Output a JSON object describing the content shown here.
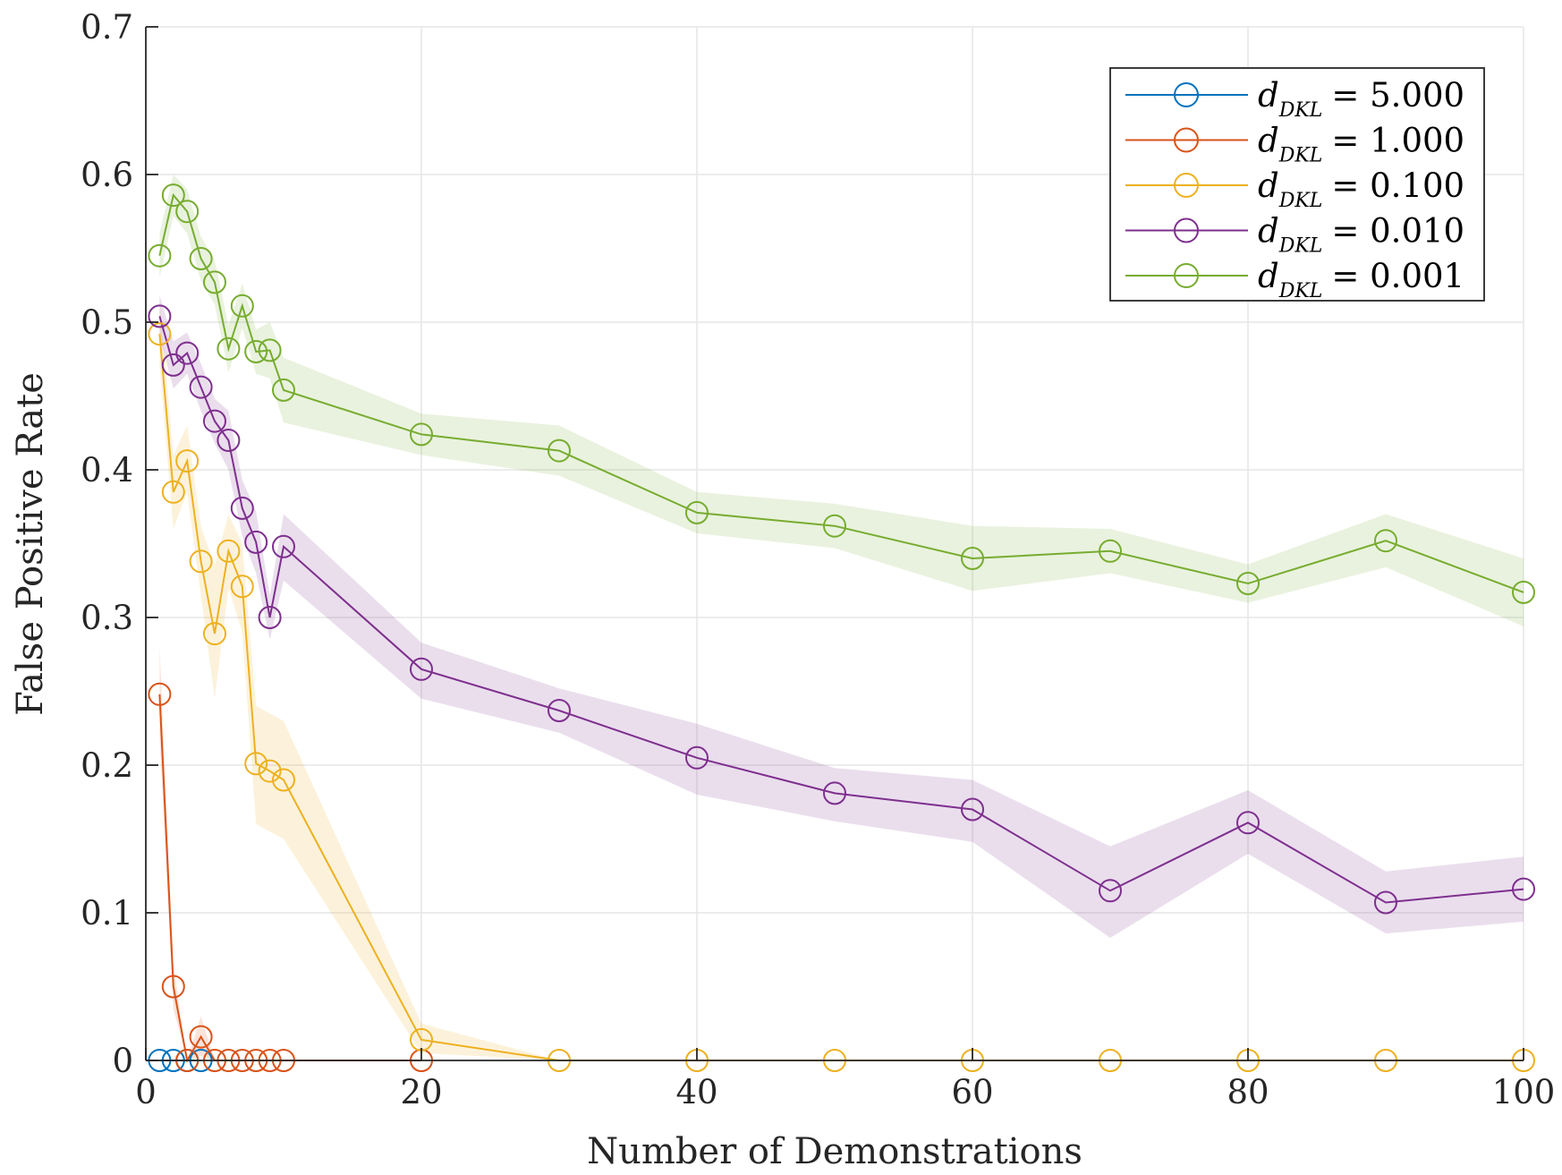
{
  "chart_data": {
    "type": "line",
    "title": "",
    "xlabel": "Number of Demonstrations",
    "ylabel": "False Positive Rate",
    "xlim": [
      0,
      100
    ],
    "ylim": [
      0,
      0.7
    ],
    "xticks": [
      0,
      20,
      40,
      60,
      80,
      100
    ],
    "yticks": [
      0,
      0.1,
      0.2,
      0.3,
      0.4,
      0.5,
      0.6,
      0.7
    ],
    "xtick_labels": [
      "0",
      "20",
      "40",
      "60",
      "80",
      "100"
    ],
    "ytick_labels": [
      "0",
      "0.1",
      "0.2",
      "0.3",
      "0.4",
      "0.5",
      "0.6",
      "0.7"
    ],
    "grid": true,
    "legend_position": "top-right",
    "series": [
      {
        "name": "d_{D_{KL}} = 5.000",
        "legend_var": "d",
        "legend_sub": "DKL",
        "legend_value": "= 5.000",
        "color": "#0072BD",
        "x": [
          1,
          2,
          3,
          4
        ],
        "values": [
          0,
          0,
          0,
          0
        ],
        "lower": [
          0,
          0,
          0,
          0
        ],
        "upper": [
          0,
          0,
          0,
          0
        ]
      },
      {
        "name": "d_{D_{KL}} = 1.000",
        "legend_var": "d",
        "legend_sub": "DKL",
        "legend_value": "= 1.000",
        "color": "#D95319",
        "x": [
          1,
          2,
          3,
          4,
          5,
          6,
          7,
          8,
          9,
          10,
          20
        ],
        "values": [
          0.248,
          0.05,
          0,
          0.016,
          0,
          0,
          0,
          0,
          0,
          0,
          0
        ],
        "lower": [
          0.22,
          0.035,
          0,
          0.003,
          0,
          0,
          0,
          0,
          0,
          0,
          0
        ],
        "upper": [
          0.28,
          0.065,
          0,
          0.03,
          0,
          0,
          0,
          0,
          0,
          0,
          0
        ]
      },
      {
        "name": "d_{D_{KL}} = 0.100",
        "legend_var": "d",
        "legend_sub": "DKL",
        "legend_value": "= 0.100",
        "color": "#EDB120",
        "x": [
          1,
          2,
          3,
          4,
          5,
          6,
          7,
          8,
          9,
          10,
          20,
          30,
          40,
          50,
          60,
          70,
          80,
          90,
          100
        ],
        "values": [
          0.492,
          0.385,
          0.406,
          0.338,
          0.289,
          0.345,
          0.321,
          0.201,
          0.196,
          0.19,
          0.014,
          0,
          0,
          0,
          0,
          0,
          0,
          0,
          0
        ],
        "lower": [
          0.47,
          0.36,
          0.385,
          0.315,
          0.245,
          0.32,
          0.29,
          0.16,
          0.155,
          0.15,
          0.005,
          0,
          0,
          0,
          0,
          0,
          0,
          0,
          0
        ],
        "upper": [
          0.515,
          0.41,
          0.43,
          0.362,
          0.335,
          0.37,
          0.35,
          0.24,
          0.235,
          0.23,
          0.025,
          0,
          0,
          0,
          0,
          0,
          0,
          0,
          0
        ]
      },
      {
        "name": "d_{D_{KL}} = 0.010",
        "legend_var": "d",
        "legend_sub": "DKL",
        "legend_value": "= 0.010",
        "color": "#7E2F8E",
        "x": [
          1,
          2,
          3,
          4,
          5,
          6,
          7,
          8,
          9,
          10,
          20,
          30,
          40,
          50,
          60,
          70,
          80,
          90,
          100
        ],
        "values": [
          0.504,
          0.471,
          0.479,
          0.456,
          0.433,
          0.42,
          0.374,
          0.351,
          0.3,
          0.348,
          0.265,
          0.237,
          0.205,
          0.181,
          0.17,
          0.115,
          0.161,
          0.107,
          0.116
        ],
        "lower": [
          0.49,
          0.455,
          0.465,
          0.44,
          0.418,
          0.4,
          0.355,
          0.33,
          0.285,
          0.325,
          0.245,
          0.222,
          0.18,
          0.162,
          0.148,
          0.083,
          0.14,
          0.086,
          0.094
        ],
        "upper": [
          0.518,
          0.487,
          0.493,
          0.472,
          0.448,
          0.44,
          0.393,
          0.372,
          0.315,
          0.37,
          0.283,
          0.252,
          0.228,
          0.198,
          0.19,
          0.145,
          0.183,
          0.128,
          0.138
        ]
      },
      {
        "name": "d_{D_{KL}} = 0.001",
        "legend_var": "d",
        "legend_sub": "DKL",
        "legend_value": "= 0.001",
        "color": "#77AC30",
        "x": [
          1,
          2,
          3,
          4,
          5,
          6,
          7,
          8,
          9,
          10,
          20,
          30,
          40,
          50,
          60,
          70,
          80,
          90,
          100
        ],
        "values": [
          0.545,
          0.586,
          0.575,
          0.543,
          0.527,
          0.482,
          0.511,
          0.48,
          0.481,
          0.454,
          0.424,
          0.413,
          0.371,
          0.362,
          0.34,
          0.345,
          0.323,
          0.352,
          0.317
        ],
        "lower": [
          0.53,
          0.572,
          0.56,
          0.528,
          0.512,
          0.466,
          0.496,
          0.465,
          0.462,
          0.432,
          0.41,
          0.396,
          0.357,
          0.347,
          0.318,
          0.33,
          0.31,
          0.334,
          0.294
        ],
        "upper": [
          0.56,
          0.6,
          0.59,
          0.558,
          0.542,
          0.498,
          0.526,
          0.495,
          0.5,
          0.476,
          0.438,
          0.43,
          0.385,
          0.377,
          0.362,
          0.36,
          0.336,
          0.37,
          0.34
        ]
      }
    ]
  }
}
